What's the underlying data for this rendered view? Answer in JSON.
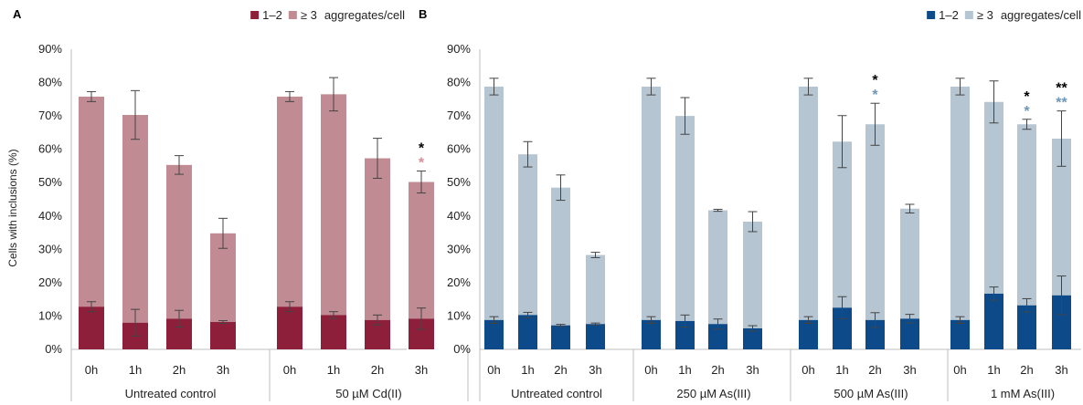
{
  "chart_data": [
    {
      "panel": "A",
      "type": "bar",
      "stacked": true,
      "ylabel": "Cells with inclusions (%)",
      "ylim": [
        0,
        90
      ],
      "yticks": [
        "0%",
        "10%",
        "20%",
        "30%",
        "40%",
        "50%",
        "60%",
        "70%",
        "80%",
        "90%"
      ],
      "legend": {
        "items": [
          "1–2",
          "≥ 3"
        ],
        "suffix": "aggregates/cell",
        "placement": "top-right"
      },
      "colors": {
        "low": "#8e1f3a",
        "high": "#c08b92",
        "sig_high": "#d58f9c",
        "sig_black": "#000000"
      },
      "groups": [
        {
          "label": "Untreated control",
          "categories": [
            "0h",
            "1h",
            "2h",
            "3h"
          ],
          "low": [
            12.8,
            8.0,
            9.2,
            8.2
          ],
          "low_err": [
            1.5,
            4.0,
            2.5,
            0.4
          ],
          "total": [
            75.8,
            70.3,
            55.3,
            34.8
          ],
          "total_err": [
            1.5,
            7.3,
            2.8,
            4.5
          ],
          "sig_black": [
            "",
            "",
            "",
            ""
          ],
          "sig_color": [
            "",
            "",
            "",
            ""
          ]
        },
        {
          "label": "50 µM Cd(II)",
          "categories": [
            "0h",
            "1h",
            "2h",
            "3h"
          ],
          "low": [
            12.8,
            10.3,
            8.8,
            9.2
          ],
          "low_err": [
            1.5,
            1.0,
            1.5,
            3.2
          ],
          "total": [
            75.8,
            76.5,
            57.3,
            50.2
          ],
          "total_err": [
            1.5,
            5.0,
            6.0,
            3.3
          ],
          "sig_black": [
            "",
            "",
            "",
            "*"
          ],
          "sig_color": [
            "",
            "",
            "",
            "*"
          ]
        }
      ]
    },
    {
      "panel": "B",
      "type": "bar",
      "stacked": true,
      "ylabel": "",
      "ylim": [
        0,
        90
      ],
      "yticks": [
        "0%",
        "10%",
        "20%",
        "30%",
        "40%",
        "50%",
        "60%",
        "70%",
        "80%",
        "90%"
      ],
      "legend": {
        "items": [
          "1–2",
          "≥ 3"
        ],
        "suffix": "aggregates/cell",
        "placement": "top-right"
      },
      "colors": {
        "low": "#0d4a8a",
        "high": "#b5c6d2",
        "sig_high": "#6e96b6",
        "sig_black": "#000000"
      },
      "groups": [
        {
          "label": "Untreated control",
          "categories": [
            "0h",
            "1h",
            "2h",
            "3h"
          ],
          "low": [
            8.8,
            10.3,
            7.2,
            7.6
          ],
          "low_err": [
            1.0,
            0.8,
            0.3,
            0.3
          ],
          "total": [
            78.8,
            58.5,
            48.5,
            28.3
          ],
          "total_err": [
            2.5,
            3.8,
            3.8,
            0.8
          ],
          "sig_black": [
            "",
            "",
            "",
            ""
          ],
          "sig_color": [
            "",
            "",
            "",
            ""
          ]
        },
        {
          "label": "250 µM As(III)",
          "categories": [
            "0h",
            "1h",
            "2h",
            "3h"
          ],
          "low": [
            8.8,
            8.5,
            7.6,
            6.3
          ],
          "low_err": [
            1.0,
            1.8,
            1.5,
            0.8
          ],
          "total": [
            78.8,
            70.0,
            41.7,
            38.3
          ],
          "total_err": [
            2.5,
            5.5,
            0.3,
            3.0
          ],
          "sig_black": [
            "",
            "",
            "",
            ""
          ],
          "sig_color": [
            "",
            "",
            "",
            ""
          ]
        },
        {
          "label": "500 µM As(III)",
          "categories": [
            "0h",
            "1h",
            "2h",
            "3h"
          ],
          "low": [
            8.8,
            12.5,
            8.8,
            9.2
          ],
          "low_err": [
            1.0,
            3.3,
            2.2,
            1.3
          ],
          "total": [
            78.8,
            62.3,
            67.5,
            42.2
          ],
          "total_err": [
            2.5,
            7.8,
            6.3,
            1.3
          ],
          "sig_black": [
            "",
            "",
            "*",
            ""
          ],
          "sig_color": [
            "",
            "",
            "*",
            ""
          ]
        },
        {
          "label": "1 mM  As(III)",
          "categories": [
            "0h",
            "1h",
            "2h",
            "3h"
          ],
          "low": [
            8.8,
            16.7,
            13.2,
            16.2
          ],
          "low_err": [
            1.0,
            2.0,
            2.0,
            5.8
          ],
          "total": [
            78.8,
            74.2,
            67.5,
            63.2
          ],
          "total_err": [
            2.5,
            6.3,
            1.5,
            8.3
          ],
          "sig_black": [
            "",
            "",
            "*",
            "**"
          ],
          "sig_color": [
            "",
            "",
            "*",
            "**"
          ]
        }
      ]
    }
  ]
}
